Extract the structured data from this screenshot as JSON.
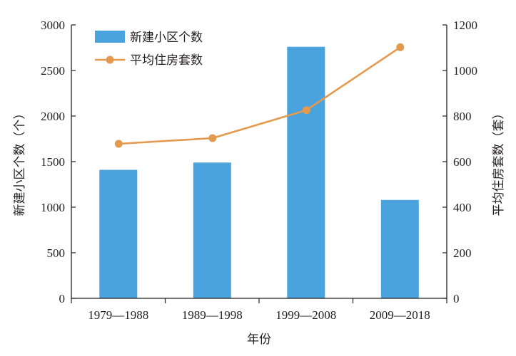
{
  "chart_data": {
    "type": "bar+line",
    "categories": [
      "1979—1988",
      "1989—1998",
      "1999—2008",
      "2009—2018"
    ],
    "series": [
      {
        "name": "新建小区个数",
        "type": "bar",
        "axis": "left",
        "values": [
          1410,
          1490,
          2760,
          1080
        ]
      },
      {
        "name": "平均住房套数",
        "type": "line",
        "axis": "right",
        "values": [
          678,
          703,
          826,
          1102
        ]
      }
    ],
    "xlabel": "年份",
    "ylabel_left": "新建小区个数（个）",
    "ylabel_right": "平均住房套数（套）",
    "ylim_left": [
      0,
      3000
    ],
    "yticks_left": [
      0,
      500,
      1000,
      1500,
      2000,
      2500,
      3000
    ],
    "ylim_right": [
      0,
      1200
    ],
    "yticks_right": [
      0,
      200,
      400,
      600,
      800,
      1000,
      1200
    ],
    "grid": false,
    "legend_position": "top-left",
    "colors": {
      "bar": "#4aa3dc",
      "line": "#e39a4e",
      "axis": "#231f20"
    }
  }
}
